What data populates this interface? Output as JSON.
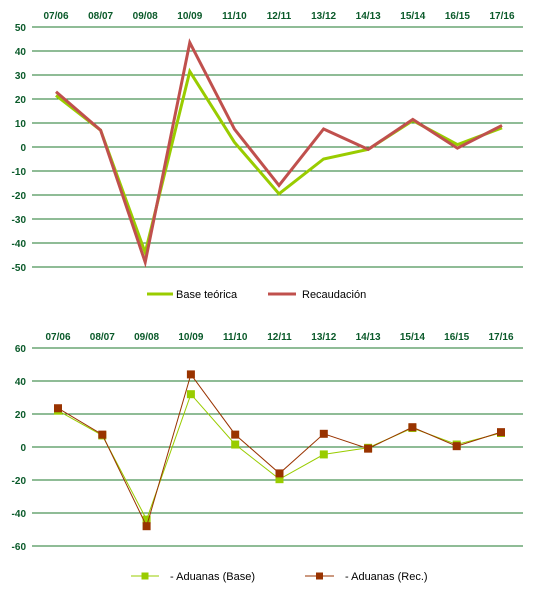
{
  "colors": {
    "grid": "#1f7a2e",
    "text": "#0a5a2a",
    "base": "#99cc00",
    "recaudacion": "#c0504d",
    "aduanas_base": "#99cc00",
    "aduanas_rec": "#993300"
  },
  "chart_data": [
    {
      "type": "line",
      "categories": [
        "07/06",
        "08/07",
        "09/08",
        "10/09",
        "11/10",
        "12/11",
        "13/12",
        "14/13",
        "15/14",
        "16/15",
        "17/16"
      ],
      "ylim": [
        -50,
        50
      ],
      "yticks": [
        50,
        40,
        30,
        20,
        10,
        0,
        -10,
        -20,
        -30,
        -40,
        -50
      ],
      "xaxis_position": "top",
      "grid": true,
      "legend_position": "bottom",
      "series": [
        {
          "name": "Base teórica",
          "color": "#99cc00",
          "values": [
            21.5,
            7,
            -44,
            31.5,
            2,
            -19.5,
            -5,
            -1,
            11,
            1,
            8
          ]
        },
        {
          "name": "Recaudación",
          "color": "#c0504d",
          "values": [
            23,
            7,
            -48,
            43.5,
            7.5,
            -16,
            7.5,
            -1,
            11.5,
            -0.5,
            9
          ]
        }
      ]
    },
    {
      "type": "line",
      "categories": [
        "07/06",
        "08/07",
        "09/08",
        "10/09",
        "11/10",
        "12/11",
        "13/12",
        "14/13",
        "15/14",
        "16/15",
        "17/16"
      ],
      "ylim": [
        -60,
        60
      ],
      "yticks": [
        60,
        40,
        20,
        0,
        -20,
        -40,
        -60
      ],
      "xaxis_position": "top",
      "grid": true,
      "legend_position": "bottom",
      "series": [
        {
          "name": "- Aduanas (Base)",
          "color": "#99cc00",
          "marker": "square",
          "values": [
            22,
            7,
            -44,
            32,
            1.5,
            -19.5,
            -4.5,
            -0.5,
            11.5,
            1.5,
            8.5
          ]
        },
        {
          "name": "- Aduanas (Rec.)",
          "color": "#993300",
          "marker": "square",
          "values": [
            23.5,
            7.5,
            -48,
            44,
            7.5,
            -16,
            8,
            -1,
            12,
            0.5,
            9
          ]
        }
      ]
    }
  ]
}
